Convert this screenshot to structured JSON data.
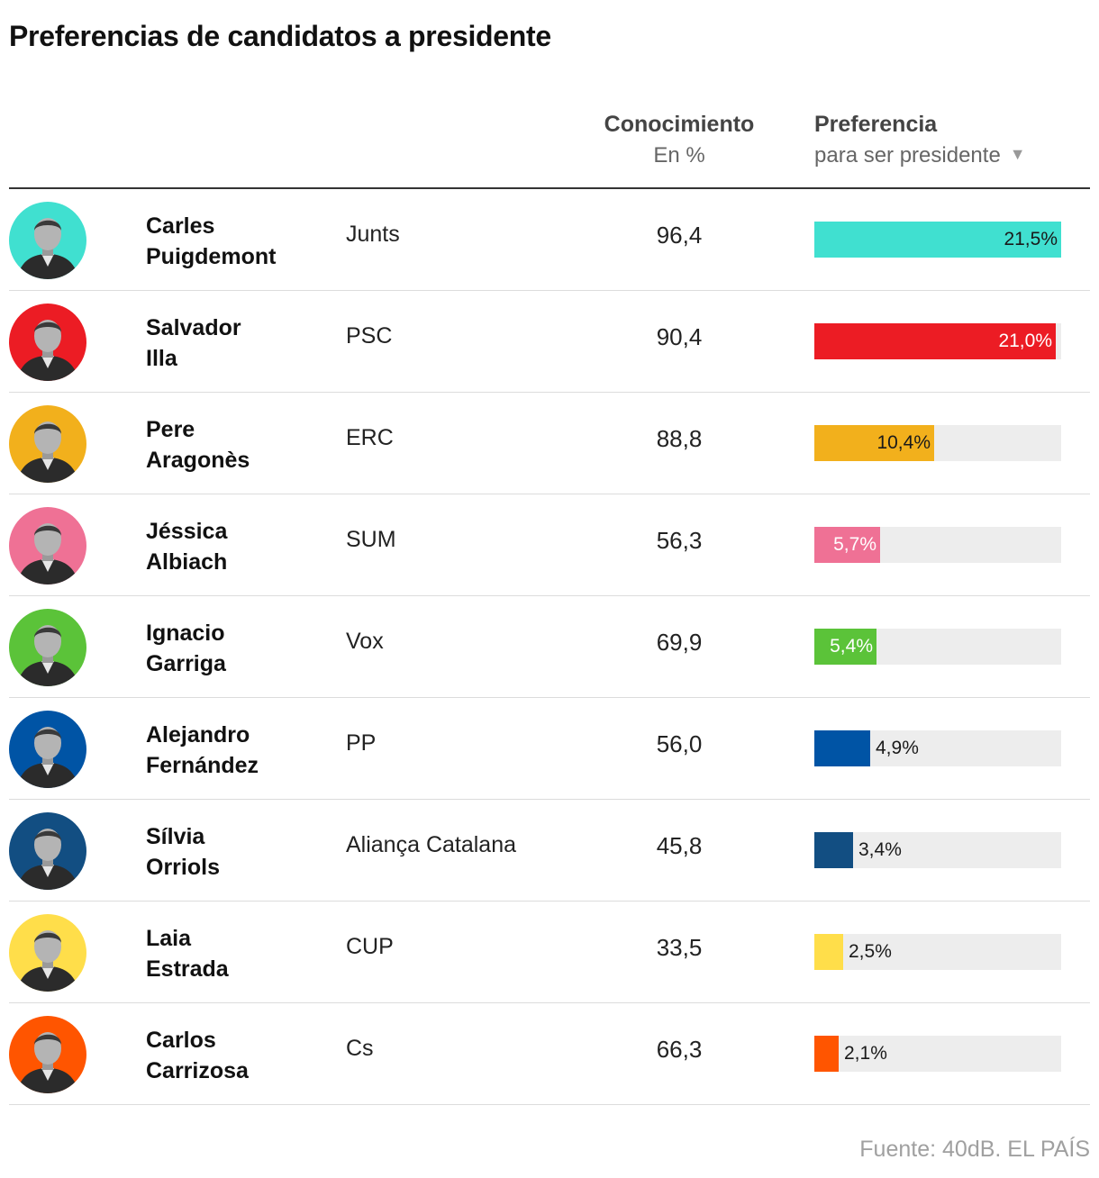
{
  "title": "Preferencias de candidatos a presidente",
  "header": {
    "knowledge_title": "Conocimiento",
    "knowledge_subtitle": "En %",
    "preference_title": "Preferencia",
    "preference_subtitle": "para ser presidente",
    "sort_icon": "triangle-down-icon"
  },
  "chart_data": {
    "type": "bar",
    "orientation": "horizontal",
    "xlim": [
      0,
      21.5
    ],
    "columns": [
      "Conocimiento",
      "Preferencia"
    ],
    "categories": [
      "Carles Puigdemont",
      "Salvador Illa",
      "Pere Aragonès",
      "Jéssica Albiach",
      "Ignacio Garriga",
      "Alejandro Fernández",
      "Sílvia Orriols",
      "Laia Estrada",
      "Carlos Carrizosa"
    ],
    "rows": [
      {
        "first": "Carles",
        "last": "Puigdemont",
        "party": "Junts",
        "knowledge": "96,4",
        "preference": 21.5,
        "preference_label": "21,5%",
        "color": "#40e0d0",
        "label_color": "#1a1a1a",
        "label_inside": true
      },
      {
        "first": "Salvador",
        "last": "Illa",
        "party": "PSC",
        "knowledge": "90,4",
        "preference": 21.0,
        "preference_label": "21,0%",
        "color": "#ec1c24",
        "label_color": "#ffffff",
        "label_inside": true
      },
      {
        "first": "Pere",
        "last": "Aragonès",
        "party": "ERC",
        "knowledge": "88,8",
        "preference": 10.4,
        "preference_label": "10,4%",
        "color": "#f2b01c",
        "label_color": "#1a1a1a",
        "label_inside": true
      },
      {
        "first": "Jéssica",
        "last": "Albiach",
        "party": "SUM",
        "knowledge": "56,3",
        "preference": 5.7,
        "preference_label": "5,7%",
        "color": "#ef7195",
        "label_color": "#ffffff",
        "label_inside": true
      },
      {
        "first": "Ignacio",
        "last": "Garriga",
        "party": "Vox",
        "knowledge": "69,9",
        "preference": 5.4,
        "preference_label": "5,4%",
        "color": "#5bc339",
        "label_color": "#ffffff",
        "label_inside": true
      },
      {
        "first": "Alejandro",
        "last": "Fernández",
        "party": "PP",
        "knowledge": "56,0",
        "preference": 4.9,
        "preference_label": "4,9%",
        "color": "#0054a5",
        "label_color": "#1a1a1a",
        "label_inside": false
      },
      {
        "first": "Sílvia",
        "last": "Orriols",
        "party": "Aliança Catalana",
        "knowledge": "45,8",
        "preference": 3.4,
        "preference_label": "3,4%",
        "color": "#124e82",
        "label_color": "#1a1a1a",
        "label_inside": false
      },
      {
        "first": "Laia",
        "last": "Estrada",
        "party": "CUP",
        "knowledge": "33,5",
        "preference": 2.5,
        "preference_label": "2,5%",
        "color": "#ffde4a",
        "label_color": "#1a1a1a",
        "label_inside": false
      },
      {
        "first": "Carlos",
        "last": "Carrizosa",
        "party": "Cs",
        "knowledge": "66,3",
        "preference": 2.1,
        "preference_label": "2,1%",
        "color": "#ff5500",
        "label_color": "#1a1a1a",
        "label_inside": false
      }
    ]
  },
  "source": "Fuente: 40dB. EL PAÍS"
}
